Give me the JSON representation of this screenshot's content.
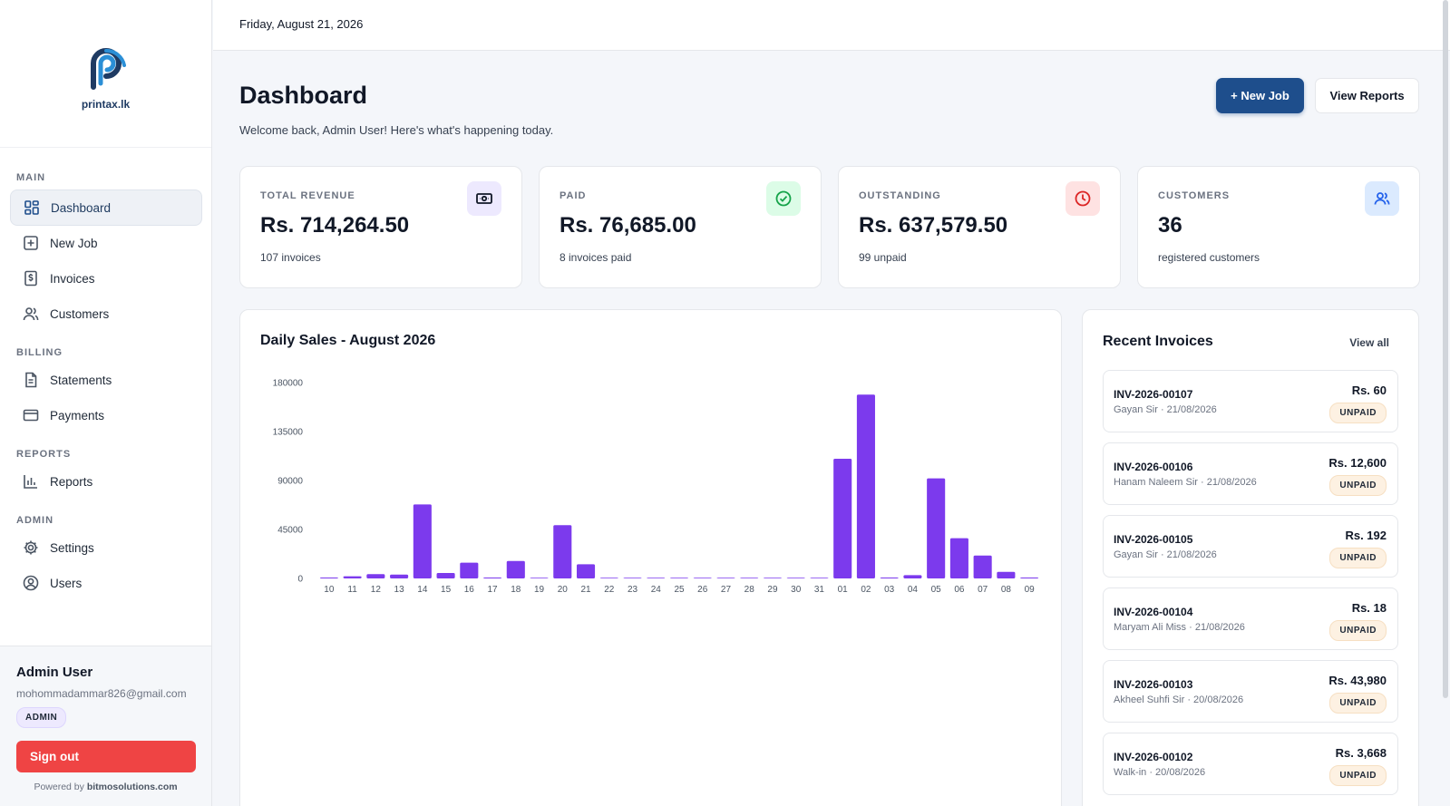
{
  "brand": {
    "name": "printax.lk"
  },
  "topbar": {
    "date": "Friday, August 21, 2026"
  },
  "nav": {
    "sections": {
      "main": "MAIN",
      "billing": "BILLING",
      "reports": "REPORTS",
      "admin": "ADMIN"
    },
    "items": {
      "dashboard": "Dashboard",
      "new_job": "New Job",
      "invoices": "Invoices",
      "customers": "Customers",
      "statements": "Statements",
      "payments": "Payments",
      "reports": "Reports",
      "settings": "Settings",
      "users": "Users"
    }
  },
  "user": {
    "name": "Admin User",
    "email": "mohommadammar826@gmail.com",
    "role": "ADMIN",
    "signout_label": "Sign out",
    "powered_prefix": "Powered by",
    "powered_brand": "bitmosolutions.com"
  },
  "header": {
    "title": "Dashboard",
    "subtitle": "Welcome back, Admin User! Here's what's happening today.",
    "new_job_label": "+ New Job",
    "view_reports_label": "View Reports"
  },
  "stats": {
    "revenue": {
      "label": "TOTAL REVENUE",
      "value": "Rs. 714,264.50",
      "foot": "107 invoices",
      "icon_color": "#7c3aed",
      "icon_bg": "#ede9fe"
    },
    "paid": {
      "label": "PAID",
      "value": "Rs. 76,685.00",
      "foot": "8 invoices paid",
      "icon_color": "#16a34a",
      "icon_bg": "#dcfce7"
    },
    "outstanding": {
      "label": "OUTSTANDING",
      "value": "Rs. 637,579.50",
      "foot": "99 unpaid",
      "icon_color": "#dc2626",
      "icon_bg": "#fee2e2"
    },
    "customers": {
      "label": "CUSTOMERS",
      "value": "36",
      "foot": "registered customers",
      "icon_color": "#2563eb",
      "icon_bg": "#dbeafe"
    }
  },
  "chart_data": {
    "type": "bar",
    "title": "Daily Sales - August 2026",
    "xlabel": "",
    "ylabel": "",
    "ylim": [
      0,
      180000
    ],
    "yticks": [
      0,
      45000,
      90000,
      135000,
      180000
    ],
    "grid": false,
    "color": "#7c3aed",
    "categories": [
      "10",
      "11",
      "12",
      "13",
      "14",
      "15",
      "16",
      "17",
      "18",
      "19",
      "20",
      "21",
      "22",
      "23",
      "24",
      "25",
      "26",
      "27",
      "28",
      "29",
      "30",
      "31",
      "01",
      "02",
      "03",
      "04",
      "05",
      "06",
      "07",
      "08",
      "09"
    ],
    "values": [
      800,
      2000,
      4000,
      3500,
      68000,
      5000,
      14500,
      500,
      16000,
      0,
      49000,
      13000,
      0,
      0,
      0,
      0,
      0,
      0,
      0,
      0,
      0,
      0,
      110000,
      169000,
      500,
      3000,
      92000,
      37000,
      21000,
      6000,
      800
    ]
  },
  "invoices": {
    "title": "Recent Invoices",
    "view_all": "View all",
    "rows": [
      {
        "no": "INV-2026-00107",
        "meta": "Gayan Sir · 21/08/2026",
        "amount": "Rs. 60",
        "status": "UNPAID"
      },
      {
        "no": "INV-2026-00106",
        "meta": "Hanam Naleem Sir · 21/08/2026",
        "amount": "Rs. 12,600",
        "status": "UNPAID"
      },
      {
        "no": "INV-2026-00105",
        "meta": "Gayan Sir · 21/08/2026",
        "amount": "Rs. 192",
        "status": "UNPAID"
      },
      {
        "no": "INV-2026-00104",
        "meta": "Maryam Ali Miss · 21/08/2026",
        "amount": "Rs. 18",
        "status": "UNPAID"
      },
      {
        "no": "INV-2026-00103",
        "meta": "Akheel Suhfi Sir · 20/08/2026",
        "amount": "Rs. 43,980",
        "status": "UNPAID"
      },
      {
        "no": "INV-2026-00102",
        "meta": "Walk-in · 20/08/2026",
        "amount": "Rs. 3,668",
        "status": "UNPAID"
      }
    ]
  }
}
